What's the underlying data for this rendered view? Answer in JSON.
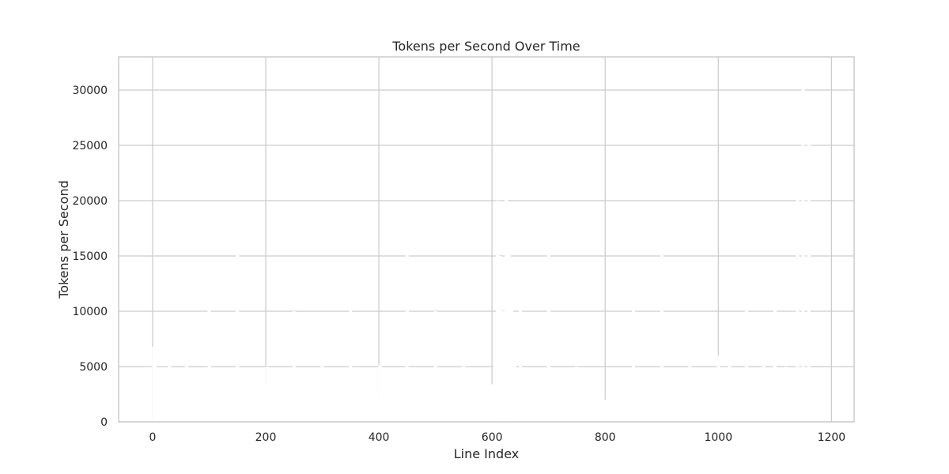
{
  "chart_data": {
    "type": "bar",
    "title": "Tokens per Second Over Time",
    "xlabel": "Line Index",
    "ylabel": "Tokens per Second",
    "xlim": [
      -60,
      1240
    ],
    "ylim": [
      0,
      33000
    ],
    "xticks": [
      0,
      200,
      400,
      600,
      800,
      1000,
      1200
    ],
    "yticks": [
      0,
      5000,
      10000,
      15000,
      20000,
      25000,
      30000
    ],
    "grid": true,
    "bar_color": "#ffffff",
    "grid_color": "#cccccc",
    "text_color": "#262626",
    "x": [
      2,
      4,
      30,
      60,
      100,
      150,
      200,
      202,
      250,
      300,
      350,
      400,
      402,
      450,
      500,
      550,
      600,
      605,
      610,
      615,
      620,
      625,
      630,
      635,
      640,
      650,
      700,
      750,
      800,
      850,
      900,
      950,
      1000,
      1020,
      1050,
      1080,
      1100,
      1120,
      1140,
      1150,
      1160
    ],
    "values": [
      6800,
      5600,
      5200,
      5100,
      10200,
      15200,
      3200,
      5000,
      10000,
      5100,
      10100,
      2200,
      5100,
      15100,
      10000,
      5100,
      3400,
      5200,
      20000,
      15000,
      10000,
      20200,
      15200,
      10100,
      5300,
      10100,
      15100,
      5000,
      2000,
      10100,
      15200,
      5100,
      6000,
      5400,
      10100,
      5200,
      10200,
      5000,
      20300,
      30200,
      25100
    ]
  }
}
